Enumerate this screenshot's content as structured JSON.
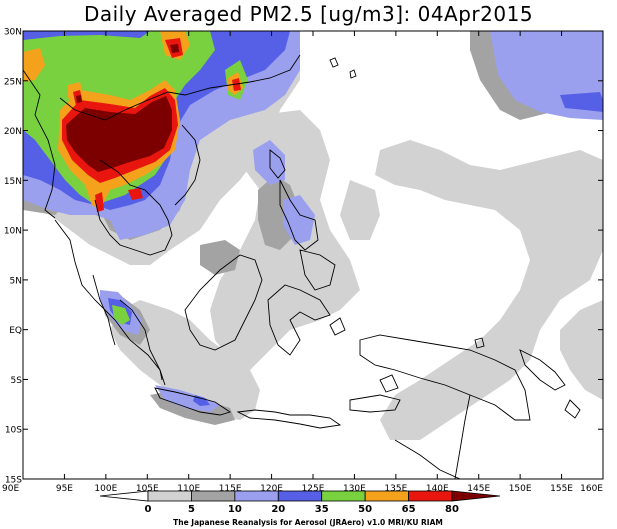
{
  "title": "Daily Averaged PM2.5 [ug/m3]: 04Apr2015",
  "lat_labels": [
    "30N",
    "25N",
    "20N",
    "15N",
    "10N",
    "5N",
    "EQ",
    "5S",
    "10S",
    "15S"
  ],
  "lon_labels": [
    "90E",
    "95E",
    "100E",
    "105E",
    "110E",
    "115E",
    "120E",
    "125E",
    "130E",
    "135E",
    "140E",
    "145E",
    "150E",
    "155E",
    "160E"
  ],
  "colorbar": {
    "levels": [
      "0",
      "5",
      "10",
      "20",
      "35",
      "50",
      "65",
      "80"
    ],
    "colors": [
      "#ffffff",
      "#d2d2d2",
      "#a3a3a3",
      "#9aa0ee",
      "#5560e6",
      "#7ad13f",
      "#f4a21c",
      "#e8160e",
      "#7d0000"
    ]
  },
  "credit": "The Japanese Reanalysis for Aerosol (JRAero) v1.0 MRI/KU RIAM"
}
